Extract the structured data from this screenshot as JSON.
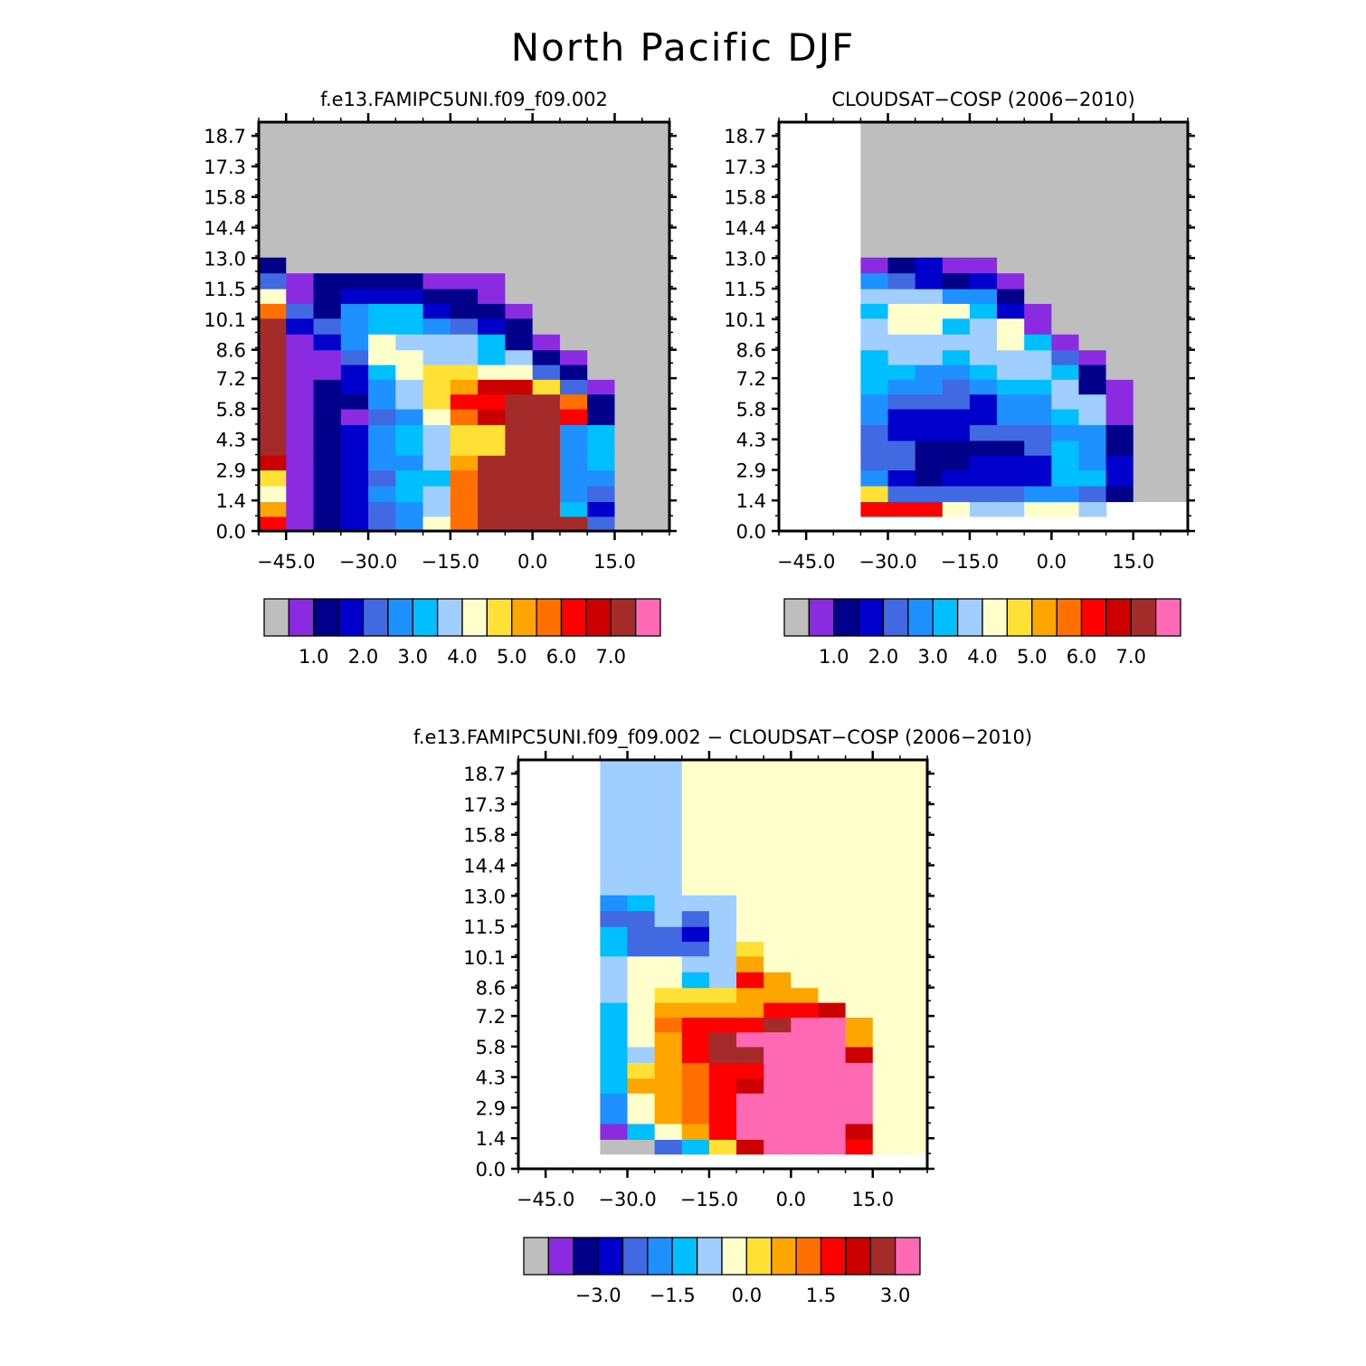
{
  "figure": {
    "title": "North Pacific DJF"
  },
  "palette": {
    "missing": "#bebebe",
    "levels": [
      "#8a2be2",
      "#00008b",
      "#0000cd",
      "#4169e1",
      "#1e90ff",
      "#00bfff",
      "#a0cfff",
      "#ffffcc",
      "#ffe135",
      "#ffa500",
      "#ff7000",
      "#ff0000",
      "#cd0000",
      "#a52a2a",
      "#ff69b4"
    ]
  },
  "colorbars": {
    "model": {
      "labels": [
        "1.0",
        "2.0",
        "3.0",
        "4.0",
        "5.0",
        "6.0",
        "7.0"
      ]
    },
    "obs": {
      "labels": [
        "1.0",
        "2.0",
        "3.0",
        "4.0",
        "5.0",
        "6.0",
        "7.0"
      ]
    },
    "diff": {
      "labels": [
        "−3.0",
        "−1.5",
        "0.0",
        "1.5",
        "3.0"
      ]
    }
  },
  "chart_data": [
    {
      "type": "heatmap",
      "title": "f.e13.FAMIPC5UNI.f09_f09.002",
      "x_ticks": [
        "−45.0",
        "−30.0",
        "−15.0",
        "0.0",
        "15.0"
      ],
      "y_ticks": [
        "0.0",
        "1.4",
        "2.9",
        "4.3",
        "5.8",
        "7.2",
        "8.6",
        "10.1",
        "11.5",
        "13.0",
        "14.4",
        "15.8",
        "17.3",
        "18.7"
      ],
      "xlim": [
        -50,
        25
      ],
      "ylim": [
        0,
        19.4
      ],
      "column_edges": [
        -50,
        -45,
        -40,
        -35,
        -30,
        -25,
        -20,
        -15,
        -10,
        -5,
        0,
        5,
        10,
        15,
        20,
        25
      ],
      "row_edges": [
        0,
        0.7,
        1.4,
        2.15,
        2.9,
        3.6,
        4.3,
        5.05,
        5.8,
        6.5,
        7.2,
        7.9,
        8.6,
        9.35,
        10.1,
        10.8,
        11.5,
        12.25,
        13.0,
        19.4
      ],
      "cell_colors": [
        [
          12,
          1,
          2,
          3,
          4,
          5,
          8,
          11,
          14,
          14,
          14,
          14,
          4,
          0,
          0
        ],
        [
          10,
          1,
          2,
          3,
          4,
          5,
          7,
          11,
          14,
          14,
          14,
          6,
          3,
          0,
          0
        ],
        [
          8,
          1,
          2,
          3,
          5,
          6,
          7,
          11,
          14,
          14,
          14,
          5,
          4,
          0,
          0
        ],
        [
          9,
          1,
          2,
          3,
          4,
          6,
          6,
          11,
          14,
          14,
          14,
          5,
          5,
          0,
          0
        ],
        [
          13,
          1,
          2,
          3,
          5,
          5,
          7,
          10,
          14,
          14,
          14,
          5,
          6,
          0,
          0
        ],
        [
          14,
          1,
          2,
          3,
          5,
          6,
          7,
          9,
          9,
          14,
          14,
          5,
          6,
          0,
          0
        ],
        [
          14,
          1,
          2,
          3,
          5,
          6,
          7,
          9,
          9,
          14,
          14,
          5,
          6,
          0,
          0
        ],
        [
          14,
          1,
          2,
          1,
          4,
          5,
          8,
          11,
          13,
          14,
          14,
          12,
          2,
          0,
          0
        ],
        [
          14,
          1,
          2,
          2,
          5,
          7,
          9,
          12,
          12,
          14,
          14,
          11,
          2,
          0,
          0
        ],
        [
          14,
          1,
          2,
          3,
          5,
          7,
          9,
          10,
          13,
          13,
          9,
          4,
          1,
          0,
          0
        ],
        [
          14,
          1,
          1,
          3,
          6,
          8,
          9,
          9,
          8,
          8,
          4,
          2,
          0,
          0,
          0
        ],
        [
          14,
          1,
          1,
          4,
          8,
          8,
          7,
          7,
          6,
          7,
          2,
          1,
          0,
          0,
          0
        ],
        [
          14,
          1,
          3,
          5,
          8,
          7,
          7,
          7,
          6,
          2,
          1,
          0,
          0,
          0,
          0
        ],
        [
          14,
          3,
          4,
          5,
          6,
          6,
          5,
          4,
          3,
          2,
          0,
          0,
          0,
          0,
          0
        ],
        [
          11,
          4,
          2,
          5,
          6,
          6,
          3,
          2,
          2,
          1,
          0,
          0,
          0,
          0,
          0
        ],
        [
          8,
          1,
          2,
          3,
          3,
          3,
          2,
          2,
          1,
          0,
          0,
          0,
          0,
          0,
          0
        ],
        [
          4,
          1,
          2,
          2,
          2,
          2,
          1,
          1,
          1,
          0,
          0,
          0,
          0,
          0,
          0
        ],
        [
          2,
          0,
          0,
          0,
          0,
          0,
          0,
          0,
          0,
          0,
          0,
          0,
          0,
          0,
          0
        ],
        [
          0,
          0,
          0,
          0,
          0,
          0,
          0,
          0,
          0,
          0,
          0,
          0,
          0,
          0,
          0
        ]
      ]
    },
    {
      "type": "heatmap",
      "title": "CLOUDSAT−COSP (2006−2010)",
      "x_ticks": [
        "−45.0",
        "−30.0",
        "−15.0",
        "0.0",
        "15.0"
      ],
      "y_ticks": [
        "0.0",
        "1.4",
        "2.9",
        "4.3",
        "5.8",
        "7.2",
        "8.6",
        "10.1",
        "11.5",
        "13.0",
        "14.4",
        "15.8",
        "17.3",
        "18.7"
      ],
      "xlim": [
        -50,
        25
      ],
      "ylim": [
        0,
        19.4
      ],
      "column_edges": [
        -35,
        -30,
        -25,
        -20,
        -15,
        -10,
        -5,
        0,
        5,
        10,
        15,
        20,
        25
      ],
      "row_edges": [
        0,
        0.7,
        1.4,
        2.15,
        2.9,
        3.6,
        4.3,
        5.05,
        5.8,
        6.5,
        7.2,
        7.9,
        8.6,
        9.35,
        10.1,
        10.8,
        11.5,
        12.25,
        13.0,
        19.4
      ],
      "cell_colors": [
        [
          -1,
          -1,
          -1,
          -1,
          -1,
          -1,
          -1,
          -1,
          -1,
          -1,
          -1,
          -1
        ],
        [
          12,
          12,
          12,
          8,
          7,
          7,
          8,
          8,
          7,
          -1,
          -1,
          -1
        ],
        [
          9,
          4,
          4,
          4,
          4,
          4,
          5,
          5,
          4,
          2,
          0,
          0
        ],
        [
          5,
          3,
          2,
          3,
          3,
          3,
          3,
          6,
          6,
          3,
          0,
          0
        ],
        [
          4,
          4,
          2,
          2,
          3,
          3,
          3,
          6,
          5,
          3,
          0,
          0
        ],
        [
          4,
          4,
          2,
          2,
          2,
          2,
          4,
          6,
          5,
          2,
          0,
          0
        ],
        [
          4,
          3,
          3,
          3,
          4,
          4,
          4,
          5,
          5,
          2,
          0,
          0
        ],
        [
          5,
          3,
          3,
          3,
          3,
          5,
          5,
          6,
          7,
          1,
          0,
          0
        ],
        [
          5,
          4,
          4,
          4,
          3,
          5,
          5,
          7,
          7,
          1,
          0,
          0
        ],
        [
          6,
          5,
          5,
          4,
          5,
          6,
          6,
          7,
          2,
          1,
          0,
          0
        ],
        [
          6,
          6,
          5,
          5,
          6,
          7,
          7,
          6,
          2,
          0,
          0,
          0
        ],
        [
          6,
          7,
          7,
          6,
          7,
          7,
          7,
          4,
          1,
          0,
          0,
          0
        ],
        [
          7,
          7,
          7,
          7,
          7,
          8,
          6,
          1,
          0,
          0,
          0,
          0
        ],
        [
          7,
          8,
          8,
          6,
          7,
          8,
          1,
          0,
          0,
          0,
          0,
          0
        ],
        [
          6,
          8,
          8,
          8,
          6,
          3,
          1,
          0,
          0,
          0,
          0,
          0
        ],
        [
          7,
          7,
          7,
          5,
          5,
          2,
          0,
          0,
          0,
          0,
          0,
          0
        ],
        [
          5,
          4,
          3,
          2,
          3,
          1,
          0,
          0,
          0,
          0,
          0,
          0
        ],
        [
          1,
          2,
          3,
          1,
          1,
          0,
          0,
          0,
          0,
          0,
          0,
          0
        ],
        [
          0,
          0,
          0,
          0,
          0,
          0,
          0,
          0,
          0,
          0,
          0,
          0
        ]
      ]
    },
    {
      "type": "heatmap",
      "title": "f.e13.FAMIPC5UNI.f09_f09.002 − CLOUDSAT−COSP (2006−2010)",
      "x_ticks": [
        "−45.0",
        "−30.0",
        "−15.0",
        "0.0",
        "15.0"
      ],
      "y_ticks": [
        "0.0",
        "1.4",
        "2.9",
        "4.3",
        "5.8",
        "7.2",
        "8.6",
        "10.1",
        "11.5",
        "13.0",
        "14.4",
        "15.8",
        "17.3",
        "18.7"
      ],
      "xlim": [
        -50,
        25
      ],
      "ylim": [
        0,
        19.4
      ],
      "column_edges": [
        -35,
        -30,
        -25,
        -20,
        -15,
        -10,
        -5,
        0,
        5,
        10,
        15,
        20,
        25
      ],
      "row_edges": [
        0,
        0.7,
        1.4,
        2.15,
        2.9,
        3.6,
        4.3,
        5.05,
        5.8,
        6.5,
        7.2,
        7.9,
        8.6,
        9.35,
        10.1,
        10.8,
        11.5,
        12.25,
        13.0,
        19.4
      ],
      "cell_colors": [
        [
          -1,
          -1,
          -1,
          -1,
          -1,
          -1,
          -1,
          -1,
          -1,
          -1,
          -1,
          -1
        ],
        [
          0,
          0,
          4,
          6,
          9,
          13,
          15,
          15,
          15,
          12,
          8,
          8
        ],
        [
          1,
          6,
          8,
          10,
          12,
          15,
          15,
          15,
          15,
          13,
          8,
          8
        ],
        [
          5,
          8,
          10,
          11,
          12,
          15,
          15,
          15,
          15,
          15,
          8,
          8
        ],
        [
          5,
          8,
          10,
          11,
          12,
          15,
          15,
          15,
          15,
          15,
          8,
          8
        ],
        [
          6,
          10,
          10,
          11,
          12,
          13,
          15,
          15,
          15,
          15,
          8,
          8
        ],
        [
          6,
          9,
          10,
          11,
          12,
          12,
          15,
          15,
          15,
          15,
          8,
          8
        ],
        [
          6,
          7,
          10,
          12,
          14,
          14,
          15,
          15,
          15,
          13,
          8,
          8
        ],
        [
          6,
          8,
          10,
          12,
          14,
          15,
          15,
          15,
          15,
          10,
          8,
          8
        ],
        [
          6,
          8,
          11,
          12,
          12,
          12,
          14,
          15,
          15,
          10,
          8,
          8
        ],
        [
          6,
          8,
          10,
          10,
          10,
          10,
          12,
          12,
          13,
          8,
          8,
          8
        ],
        [
          7,
          8,
          9,
          9,
          9,
          10,
          10,
          10,
          8,
          8,
          8,
          8
        ],
        [
          7,
          8,
          8,
          6,
          7,
          12,
          10,
          8,
          8,
          8,
          8,
          8
        ],
        [
          7,
          8,
          8,
          7,
          7,
          10,
          8,
          8,
          8,
          8,
          8,
          8
        ],
        [
          6,
          4,
          4,
          4,
          7,
          9,
          8,
          8,
          8,
          8,
          8,
          8
        ],
        [
          6,
          4,
          4,
          3,
          7,
          8,
          8,
          8,
          8,
          8,
          8,
          8
        ],
        [
          4,
          4,
          7,
          4,
          7,
          8,
          8,
          8,
          8,
          8,
          8,
          8
        ],
        [
          5,
          6,
          7,
          7,
          7,
          8,
          8,
          8,
          8,
          8,
          8,
          8
        ],
        [
          7,
          7,
          7,
          8,
          8,
          8,
          8,
          8,
          8,
          8,
          8,
          8
        ]
      ]
    }
  ]
}
